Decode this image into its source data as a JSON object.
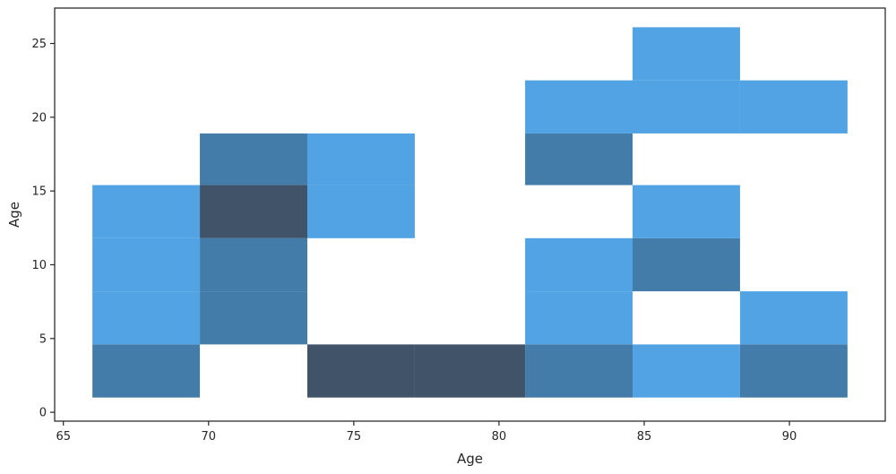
{
  "chart_data": {
    "type": "heatmap",
    "title": "",
    "xlabel": "Age",
    "ylabel": "Age",
    "xlim": [
      64.7,
      93.3
    ],
    "ylim": [
      -0.6,
      27.4
    ],
    "xticks": [
      65,
      70,
      75,
      80,
      85,
      90
    ],
    "yticks": [
      0,
      5,
      10,
      15,
      20,
      25
    ],
    "grid": false,
    "legend": "none",
    "colors": {
      "low": "#52a3e3",
      "mid": "#437ca8",
      "high": "#415369",
      "axis": "#262626"
    },
    "cells": [
      {
        "x0": 66.0,
        "x1": 69.7,
        "y0": 1.0,
        "y1": 4.6,
        "level": 2
      },
      {
        "x0": 66.0,
        "x1": 69.7,
        "y0": 4.6,
        "y1": 8.2,
        "level": 1
      },
      {
        "x0": 66.0,
        "x1": 69.7,
        "y0": 8.2,
        "y1": 11.8,
        "level": 1
      },
      {
        "x0": 66.0,
        "x1": 69.7,
        "y0": 11.8,
        "y1": 15.4,
        "level": 1
      },
      {
        "x0": 69.7,
        "x1": 73.4,
        "y0": 4.6,
        "y1": 8.2,
        "level": 2
      },
      {
        "x0": 69.7,
        "x1": 73.4,
        "y0": 8.2,
        "y1": 11.8,
        "level": 2
      },
      {
        "x0": 69.7,
        "x1": 73.4,
        "y0": 11.8,
        "y1": 15.4,
        "level": 3
      },
      {
        "x0": 69.7,
        "x1": 73.4,
        "y0": 15.4,
        "y1": 18.9,
        "level": 2
      },
      {
        "x0": 73.4,
        "x1": 77.1,
        "y0": 1.0,
        "y1": 4.6,
        "level": 3
      },
      {
        "x0": 73.4,
        "x1": 77.1,
        "y0": 11.8,
        "y1": 15.4,
        "level": 1
      },
      {
        "x0": 73.4,
        "x1": 77.1,
        "y0": 15.4,
        "y1": 18.9,
        "level": 1
      },
      {
        "x0": 77.1,
        "x1": 80.9,
        "y0": 1.0,
        "y1": 4.6,
        "level": 3
      },
      {
        "x0": 80.9,
        "x1": 84.6,
        "y0": 1.0,
        "y1": 4.6,
        "level": 2
      },
      {
        "x0": 80.9,
        "x1": 84.6,
        "y0": 4.6,
        "y1": 8.2,
        "level": 1
      },
      {
        "x0": 80.9,
        "x1": 84.6,
        "y0": 8.2,
        "y1": 11.8,
        "level": 1
      },
      {
        "x0": 80.9,
        "x1": 84.6,
        "y0": 15.4,
        "y1": 18.9,
        "level": 2
      },
      {
        "x0": 80.9,
        "x1": 84.6,
        "y0": 18.9,
        "y1": 22.5,
        "level": 1
      },
      {
        "x0": 84.6,
        "x1": 88.3,
        "y0": 1.0,
        "y1": 4.6,
        "level": 1
      },
      {
        "x0": 84.6,
        "x1": 88.3,
        "y0": 8.2,
        "y1": 11.8,
        "level": 2
      },
      {
        "x0": 84.6,
        "x1": 88.3,
        "y0": 11.8,
        "y1": 15.4,
        "level": 1
      },
      {
        "x0": 84.6,
        "x1": 88.3,
        "y0": 18.9,
        "y1": 22.5,
        "level": 1
      },
      {
        "x0": 84.6,
        "x1": 88.3,
        "y0": 22.5,
        "y1": 26.1,
        "level": 1
      },
      {
        "x0": 88.3,
        "x1": 92.0,
        "y0": 1.0,
        "y1": 4.6,
        "level": 2
      },
      {
        "x0": 88.3,
        "x1": 92.0,
        "y0": 4.6,
        "y1": 8.2,
        "level": 1
      },
      {
        "x0": 88.3,
        "x1": 92.0,
        "y0": 18.9,
        "y1": 22.5,
        "level": 1
      }
    ]
  }
}
